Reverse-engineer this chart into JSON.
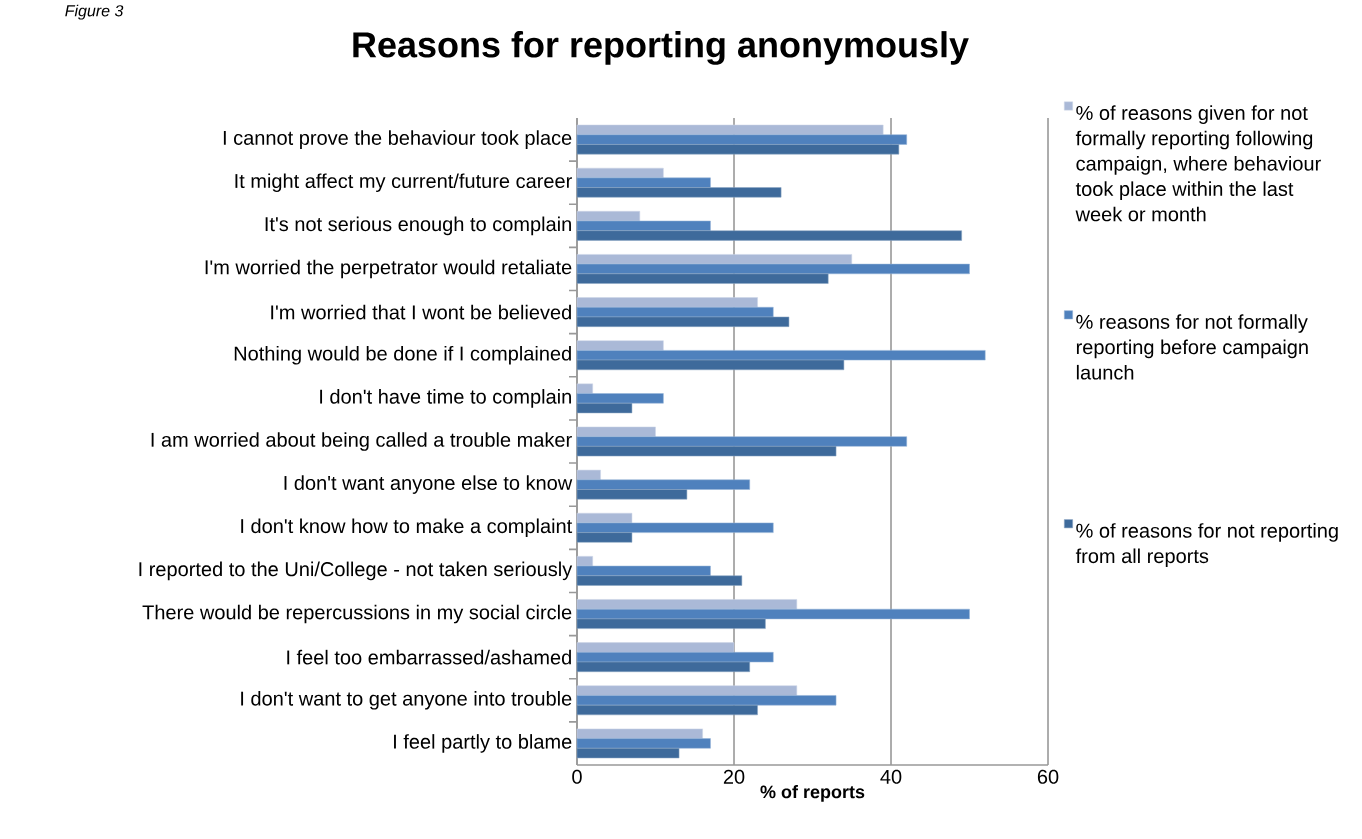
{
  "chart_data": {
    "type": "bar",
    "orientation": "horizontal",
    "title": "Reasons for reporting anonymously",
    "xlabel": "% of reports",
    "annotations": [
      "Figure 3"
    ],
    "categories": [
      "I cannot prove the behaviour took place",
      "It might affect my current/future career",
      "It's not serious enough to complain",
      "I'm worried the perpetrator would retaliate",
      "I'm worried that I wont be believed",
      "Nothing would be done if I complained",
      "I don't have time to complain",
      "I am worried about being called a trouble maker",
      "I don't want anyone else to know",
      "I don't know how to make a complaint",
      "I reported to the Uni/College - not taken seriously",
      "There would be repercussions in my social circle",
      "I feel too embarrassed/ashamed",
      "I don't want to get anyone into trouble",
      "I feel partly to blame"
    ],
    "series": [
      {
        "name": "% of reasons given for not formally reporting following campaign, where behaviour took place within the last week or month",
        "color": "#aab9d7",
        "values": [
          39,
          11,
          8,
          35,
          23,
          11,
          2,
          10,
          3,
          7,
          2,
          28,
          20,
          28,
          16
        ]
      },
      {
        "name": "% reasons for not formally reporting before campaign launch",
        "color": "#4f81bd",
        "values": [
          42,
          17,
          17,
          50,
          25,
          52,
          11,
          42,
          22,
          25,
          17,
          50,
          25,
          33,
          17
        ]
      },
      {
        "name": "% of reasons for not reporting from all reports",
        "color": "#3e6a9b",
        "values": [
          41,
          26,
          49,
          32,
          27,
          34,
          7,
          33,
          14,
          7,
          21,
          24,
          22,
          23,
          13
        ]
      }
    ],
    "xlim": [
      0,
      60
    ],
    "xticks": [
      0,
      20,
      40,
      60
    ],
    "grid": "x",
    "legend": "right"
  }
}
